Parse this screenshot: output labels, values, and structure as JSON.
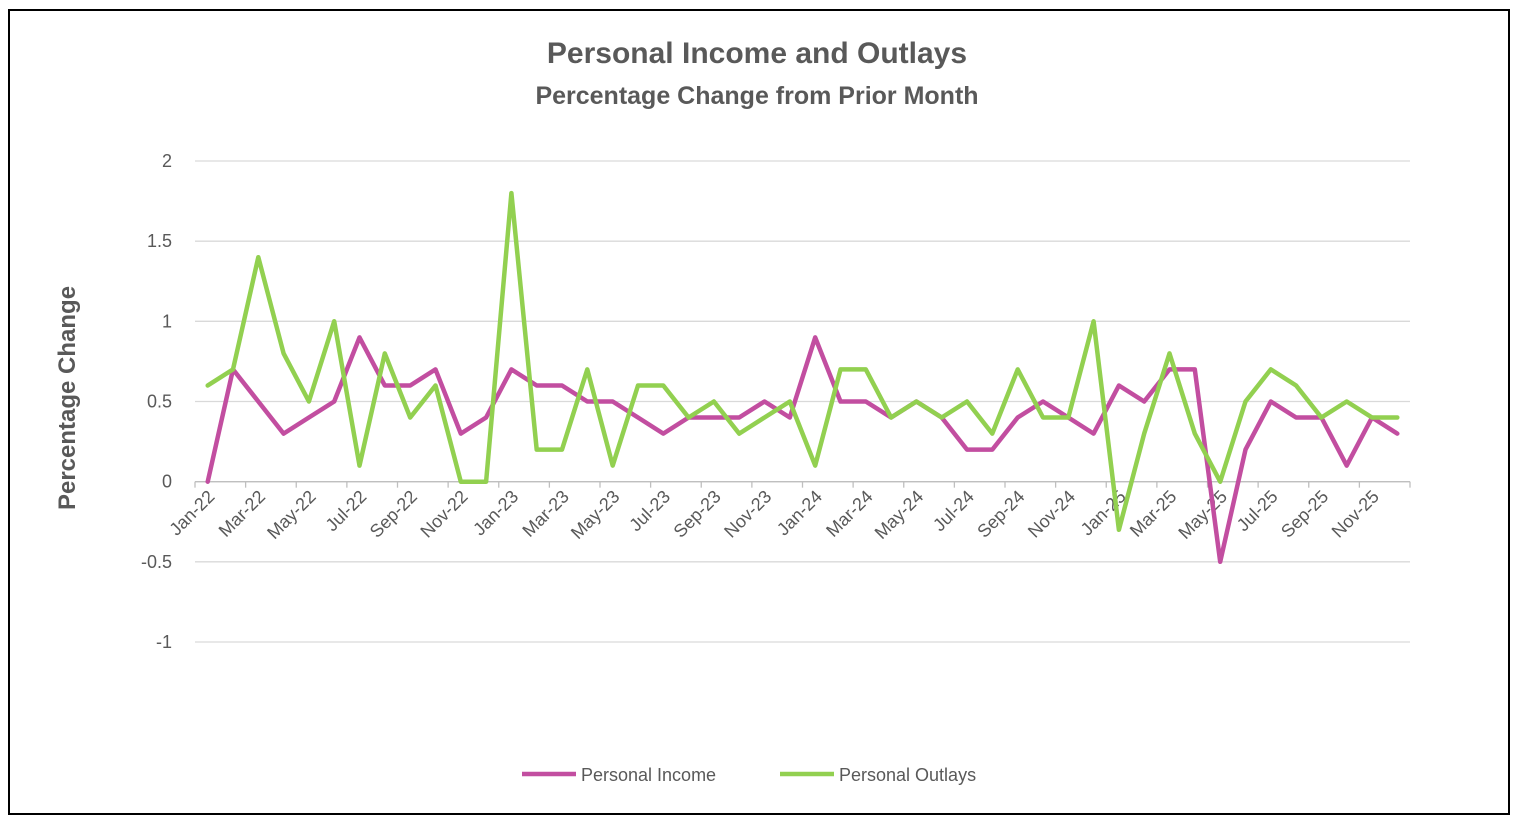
{
  "chart_data": {
    "type": "line",
    "title": "Personal Income and Outlays",
    "subtitle": "Percentage Change from Prior Month",
    "ylabel": "Percentage Change",
    "xlabel": "",
    "ylim": [
      -1,
      2
    ],
    "yticks": [
      2,
      1.5,
      1,
      0.5,
      0,
      -0.5,
      -1
    ],
    "ytick_labels": [
      "2",
      "1.5",
      "1",
      "0.5",
      "0",
      "-0.5",
      "-1"
    ],
    "grid": true,
    "legend_position": "bottom",
    "x": [
      "Jan-22",
      "Feb-22",
      "Mar-22",
      "Apr-22",
      "May-22",
      "Jun-22",
      "Jul-22",
      "Aug-22",
      "Sep-22",
      "Oct-22",
      "Nov-22",
      "Dec-22",
      "Jan-23",
      "Feb-23",
      "Mar-23",
      "Apr-23",
      "May-23",
      "Jun-23",
      "Jul-23",
      "Aug-23",
      "Sep-23",
      "Oct-23",
      "Nov-23",
      "Dec-23",
      "Jan-24",
      "Feb-24",
      "Mar-24",
      "Apr-24",
      "May-24",
      "Jun-24",
      "Jul-24",
      "Aug-24",
      "Sep-24",
      "Oct-24",
      "Nov-24",
      "Dec-24",
      "Jan-25",
      "Feb-25",
      "Mar-25",
      "Apr-25",
      "May-25",
      "Jun-25",
      "Jul-25",
      "Aug-25",
      "Sep-25",
      "Oct-25",
      "Nov-25",
      "Dec-25"
    ],
    "xtick_labels": [
      "Jan-22",
      "Mar-22",
      "May-22",
      "Jul-22",
      "Sep-22",
      "Nov-22",
      "Jan-23",
      "Mar-23",
      "May-23",
      "Jul-23",
      "Sep-23",
      "Nov-23",
      "Jan-24",
      "Mar-24",
      "May-24",
      "Jul-24",
      "Sep-24",
      "Nov-24",
      "Jan-25",
      "Mar-25",
      "May-25",
      "Jul-25",
      "Sep-25",
      "Nov-25"
    ],
    "series": [
      {
        "name": "Personal Income",
        "color": "#C24EA0",
        "values": [
          0,
          0.7,
          0.5,
          0.3,
          0.4,
          0.5,
          0.9,
          0.6,
          0.6,
          0.7,
          0.3,
          0.4,
          0.7,
          0.6,
          0.6,
          0.5,
          0.5,
          0.4,
          0.3,
          0.4,
          0.4,
          0.4,
          0.5,
          0.4,
          0.9,
          0.5,
          0.5,
          0.4,
          0.5,
          0.4,
          0.2,
          0.2,
          0.4,
          0.5,
          0.4,
          0.3,
          0.6,
          0.5,
          0.7,
          0.7,
          -0.5,
          0.2,
          0.5,
          0.4,
          0.4,
          0.1,
          0.4,
          0.3
        ]
      },
      {
        "name": "Personal Outlays",
        "color": "#92D050",
        "values": [
          0.6,
          0.7,
          1.4,
          0.8,
          0.5,
          1.0,
          0.1,
          0.8,
          0.4,
          0.6,
          0,
          0,
          1.8,
          0.2,
          0.2,
          0.7,
          0.1,
          0.6,
          0.6,
          0.4,
          0.5,
          0.3,
          0.4,
          0.5,
          0.1,
          0.7,
          0.7,
          0.4,
          0.5,
          0.4,
          0.5,
          0.3,
          0.7,
          0.4,
          0.4,
          1.0,
          -0.3,
          0.3,
          0.8,
          0.3,
          0,
          0.5,
          0.7,
          0.6,
          0.4,
          0.5,
          0.4,
          0.4
        ]
      }
    ]
  }
}
